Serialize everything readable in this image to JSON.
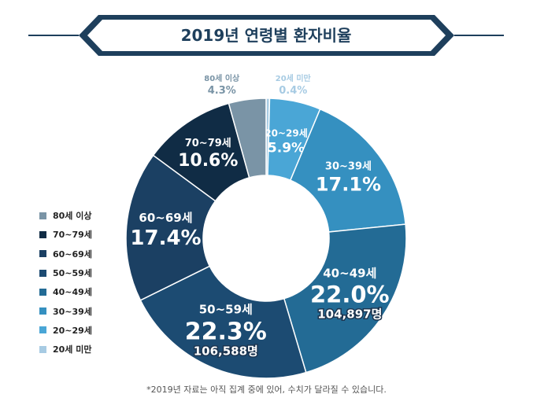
{
  "title": "2019년 연령별 환자비율",
  "footnote": "*2019년 자료는 아직 집계 중에 있어, 수치가 달라질 수 있습니다.",
  "colors": {
    "banner_outline": "#1e3f5c",
    "banner_text": "#1e3f5c",
    "under_80": "#7a94a6",
    "70s": "#102c45",
    "60s": "#1b4063",
    "50s": "#1c4b72",
    "40s": "#236b95",
    "30s": "#3590c0",
    "20s": "#4aa6d6",
    "under_20": "#a7cbe3"
  },
  "chart_data": {
    "type": "pie",
    "donut": true,
    "slices": [
      {
        "label": "20세 미만",
        "value": 0.4,
        "value_text": "0.4%",
        "count": "",
        "color": "#a7cbe3"
      },
      {
        "label": "20~29세",
        "value": 5.9,
        "value_text": "5.9%",
        "count": "",
        "color": "#4aa6d6"
      },
      {
        "label": "30~39세",
        "value": 17.1,
        "value_text": "17.1%",
        "count": "",
        "color": "#3590c0"
      },
      {
        "label": "40~49세",
        "value": 22.0,
        "value_text": "22.0%",
        "count": "104,897명",
        "color": "#236b95"
      },
      {
        "label": "50~59세",
        "value": 22.3,
        "value_text": "22.3%",
        "count": "106,588명",
        "color": "#1c4b72"
      },
      {
        "label": "60~69세",
        "value": 17.4,
        "value_text": "17.4%",
        "count": "",
        "color": "#1b4063"
      },
      {
        "label": "70~79세",
        "value": 10.6,
        "value_text": "10.6%",
        "count": "",
        "color": "#102c45"
      },
      {
        "label": "80세 이상",
        "value": 4.3,
        "value_text": "4.3%",
        "count": "",
        "color": "#7a94a6"
      }
    ],
    "legend": [
      {
        "label": "80세 이상",
        "color": "#7a94a6"
      },
      {
        "label": "70~79세",
        "color": "#102c45"
      },
      {
        "label": "60~69세",
        "color": "#1b4063"
      },
      {
        "label": "50~59세",
        "color": "#1c4b72"
      },
      {
        "label": "40~49세",
        "color": "#236b95"
      },
      {
        "label": "30~39세",
        "color": "#3590c0"
      },
      {
        "label": "20~29세",
        "color": "#4aa6d6"
      },
      {
        "label": "20세 미만",
        "color": "#a7cbe3"
      }
    ],
    "legend_placement": "left"
  }
}
